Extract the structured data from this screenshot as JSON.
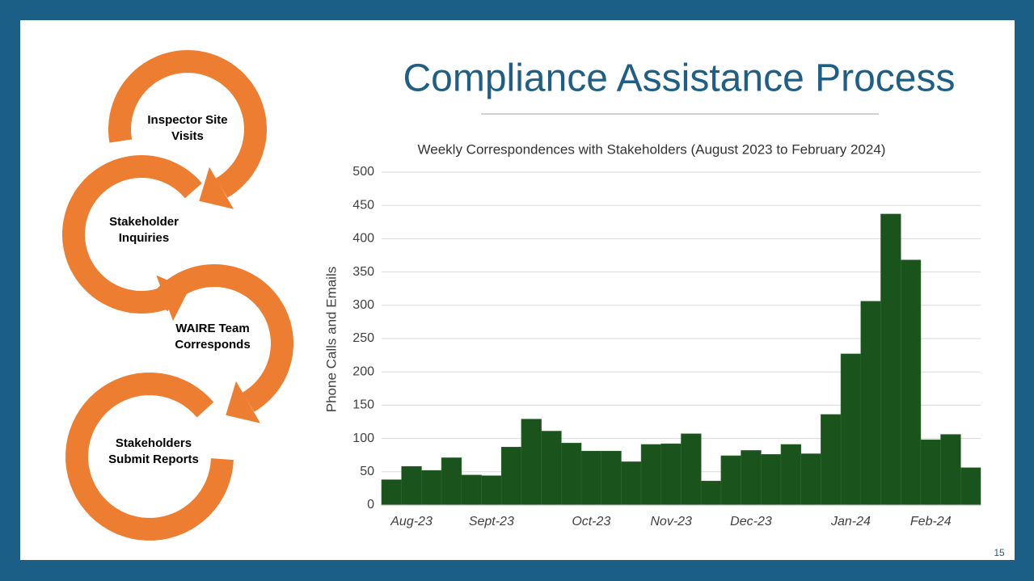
{
  "slide_title": "Compliance Assistance Process",
  "diagram": {
    "steps": [
      [
        "Inspector Site",
        "Visits"
      ],
      [
        "Stakeholder",
        "Inquiries"
      ],
      [
        "WAIRE Team",
        "Corresponds"
      ],
      [
        "Stakeholders",
        "Submit Reports"
      ]
    ]
  },
  "page_number": 15,
  "chart_data": {
    "type": "bar",
    "title": "Weekly Correspondences with Stakeholders (August 2023 to February 2024)",
    "y_label": "Phone Calls and Emails",
    "categories": [
      null,
      "Aug-23",
      null,
      null,
      null,
      "Sept-23",
      null,
      null,
      null,
      null,
      "Oct-23",
      null,
      null,
      null,
      "Nov-23",
      null,
      null,
      null,
      "Dec-23",
      null,
      null,
      null,
      null,
      "Jan-24",
      null,
      null,
      null,
      "Feb-24",
      null,
      null
    ],
    "values": [
      38,
      58,
      52,
      71,
      45,
      44,
      87,
      129,
      111,
      93,
      81,
      81,
      65,
      91,
      92,
      107,
      36,
      74,
      82,
      76,
      91,
      77,
      136,
      227,
      306,
      437,
      368,
      98,
      106,
      56
    ],
    "color": "#1a531b",
    "ylim": [
      0,
      500
    ],
    "yticks": [
      0,
      50,
      100,
      150,
      200,
      250,
      300,
      350,
      400,
      450,
      500
    ],
    "grid": true
  }
}
